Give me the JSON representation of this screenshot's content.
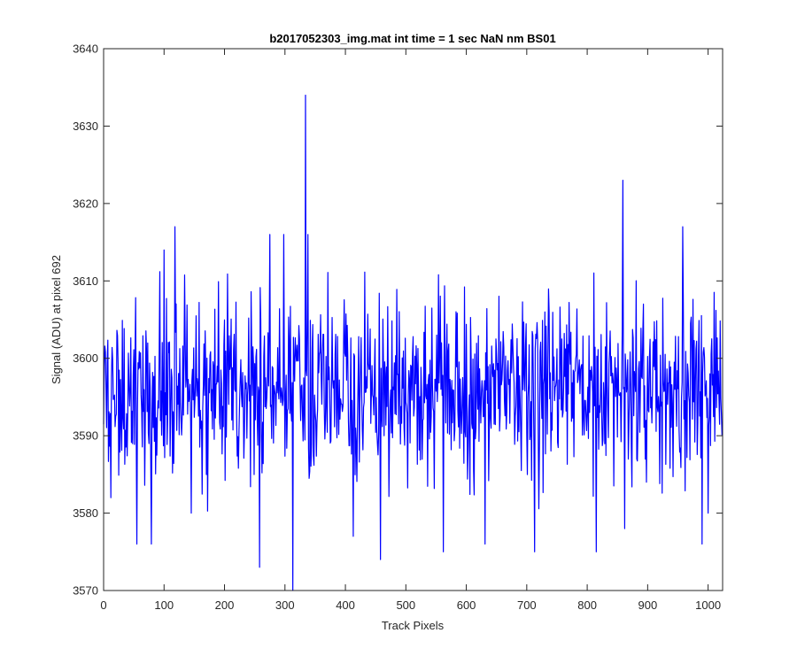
{
  "chart_data": {
    "type": "line",
    "title": "b2017052303_img.mat int time = 1 sec  NaN nm BS01",
    "xlabel": "Track Pixels",
    "ylabel": "Signal (ADU) at pixel 692",
    "xlim": [
      0,
      1024
    ],
    "ylim": [
      3570,
      3640
    ],
    "xticks": [
      0,
      100,
      200,
      300,
      400,
      500,
      600,
      700,
      800,
      900,
      1000
    ],
    "yticks": [
      3570,
      3580,
      3590,
      3600,
      3610,
      3620,
      3630,
      3640
    ],
    "grid": false,
    "legend": "none",
    "series_color": "#0000ff",
    "series": [
      {
        "generated": true,
        "n_points": 1024,
        "mean": 3596,
        "noise_std": 6,
        "seed": 20170523,
        "peaks": [
          {
            "x": 12,
            "y": 3582
          },
          {
            "x": 55,
            "y": 3576
          },
          {
            "x": 79,
            "y": 3576
          },
          {
            "x": 100,
            "y": 3614
          },
          {
            "x": 118,
            "y": 3617
          },
          {
            "x": 145,
            "y": 3580
          },
          {
            "x": 258,
            "y": 3573
          },
          {
            "x": 275,
            "y": 3616
          },
          {
            "x": 298,
            "y": 3616
          },
          {
            "x": 313,
            "y": 3570
          },
          {
            "x": 334,
            "y": 3634
          },
          {
            "x": 338,
            "y": 3616
          },
          {
            "x": 413,
            "y": 3577
          },
          {
            "x": 458,
            "y": 3574
          },
          {
            "x": 562,
            "y": 3575
          },
          {
            "x": 631,
            "y": 3576
          },
          {
            "x": 713,
            "y": 3575
          },
          {
            "x": 815,
            "y": 3575
          },
          {
            "x": 859,
            "y": 3623
          },
          {
            "x": 862,
            "y": 3578
          },
          {
            "x": 958,
            "y": 3617
          },
          {
            "x": 990,
            "y": 3576
          },
          {
            "x": 1000,
            "y": 3580
          }
        ]
      }
    ]
  }
}
